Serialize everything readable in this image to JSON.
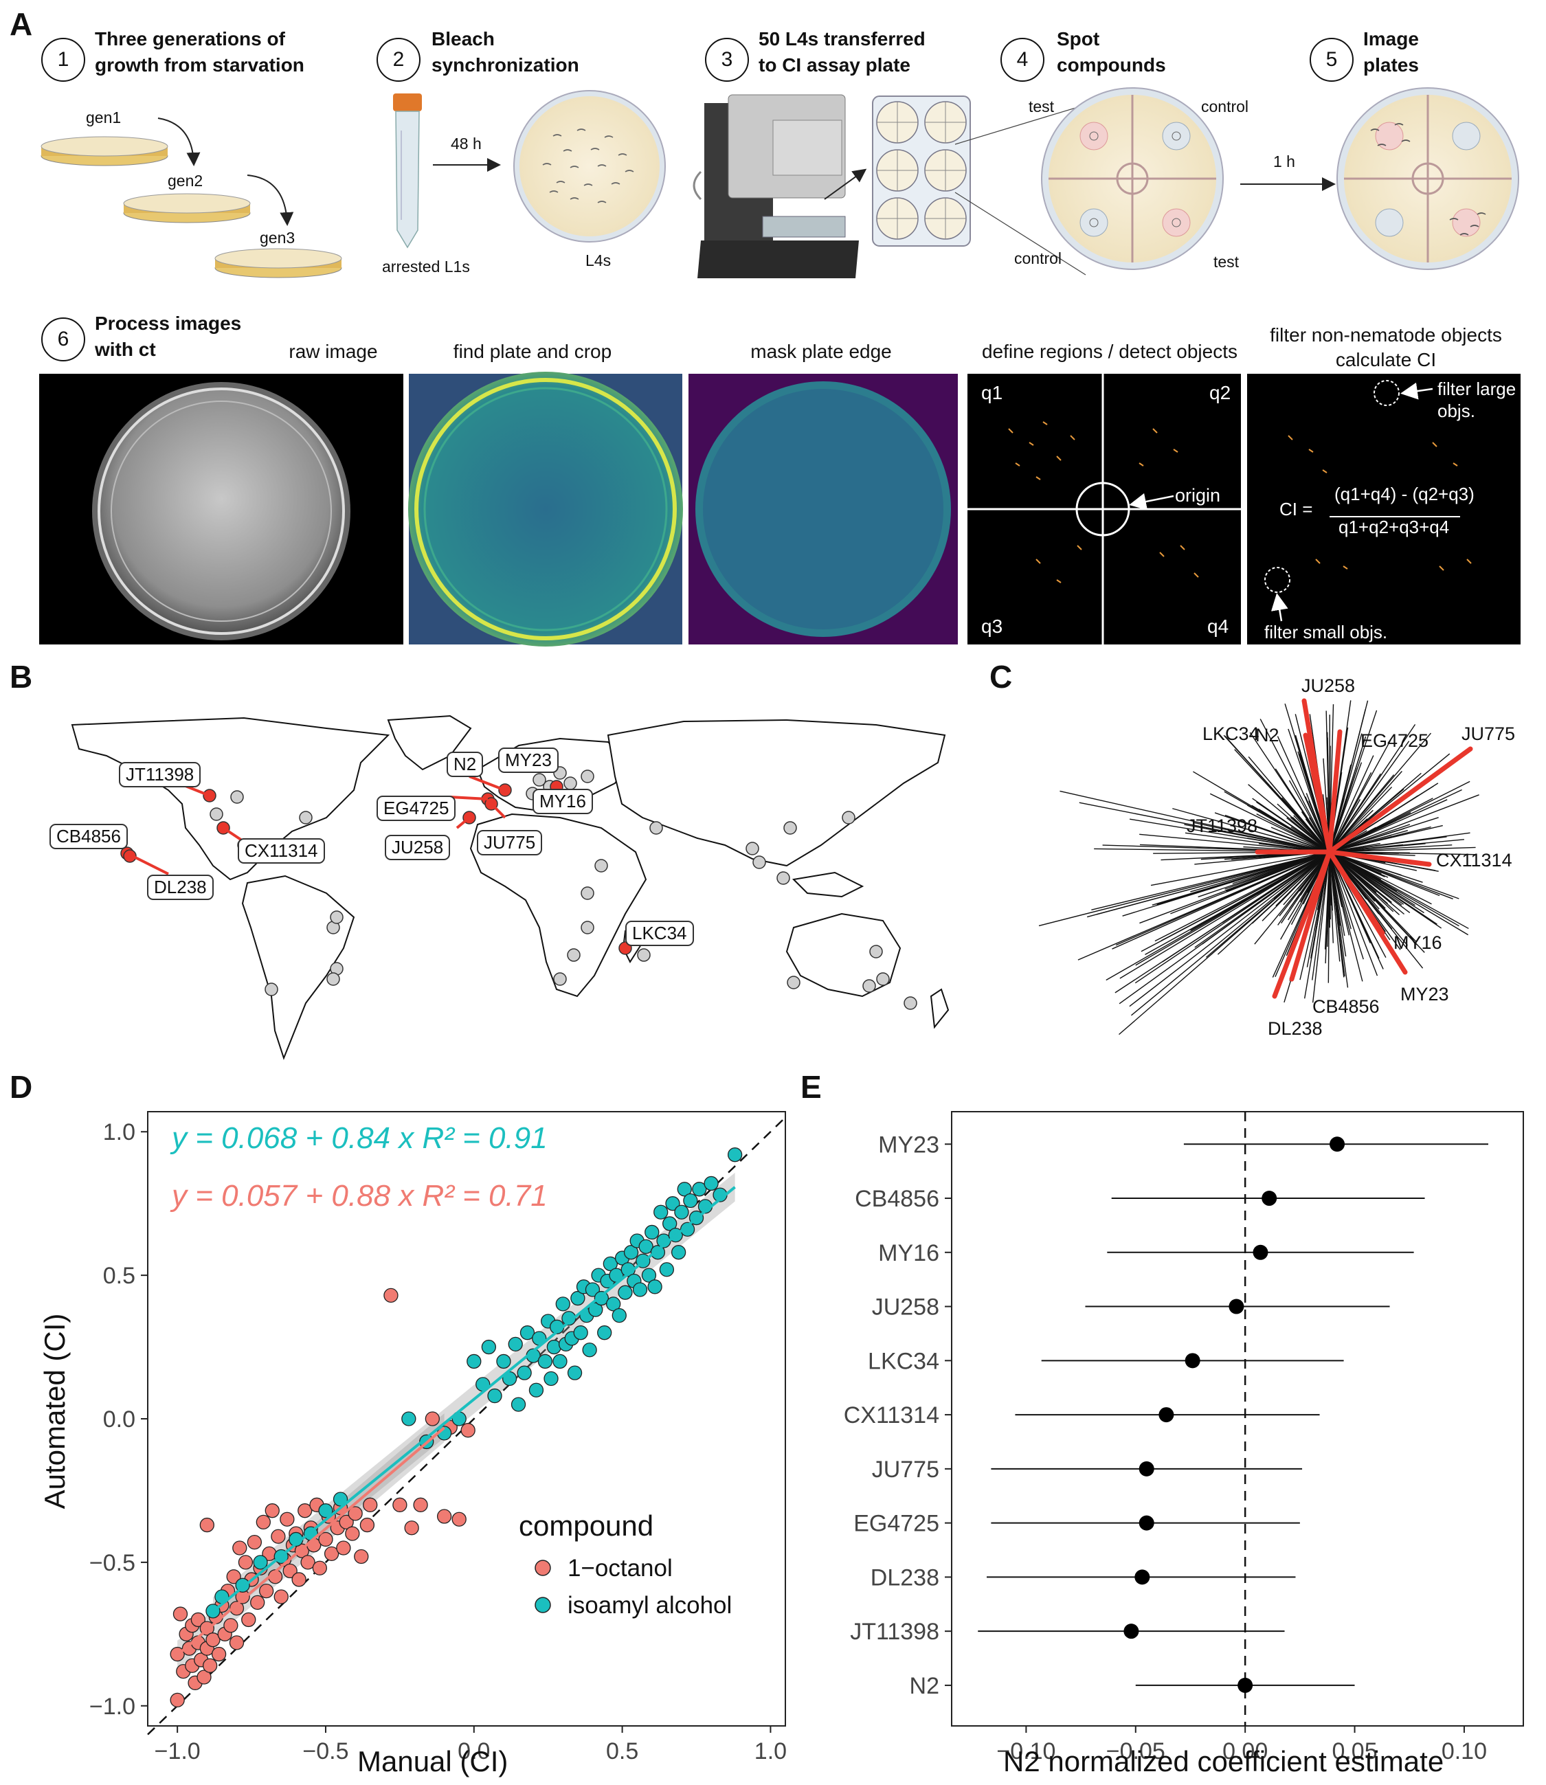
{
  "panels": {
    "a": "A",
    "b": "B",
    "c": "C",
    "d": "D",
    "e": "E"
  },
  "steps": [
    {
      "num": "1",
      "title": "Three generations of\ngrowth from starvation"
    },
    {
      "num": "2",
      "title": "Bleach\nsynchronization"
    },
    {
      "num": "3",
      "title": "50 L4s transferred\nto CI assay plate"
    },
    {
      "num": "4",
      "title": "Spot\ncompounds"
    },
    {
      "num": "5",
      "title": "Image\nplates"
    },
    {
      "num": "6",
      "title": "Process images\nwith ct"
    }
  ],
  "step1": {
    "gen1": "gen1",
    "gen2": "gen2",
    "gen3": "gen3"
  },
  "step2": {
    "arrested": "arrested L1s",
    "time": "48 h",
    "l4": "L4s"
  },
  "step4": {
    "test1": "test",
    "control1": "control",
    "control2": "control",
    "test2": "test",
    "time": "1 h"
  },
  "images": [
    {
      "title": "raw image"
    },
    {
      "title": "find plate and crop"
    },
    {
      "title": "mask plate edge"
    },
    {
      "title": "define regions / detect objects"
    },
    {
      "title": "filter non-nematode objects\ncalculate CI"
    }
  ],
  "regions": {
    "q1": "q1",
    "q2": "q2",
    "q3": "q3",
    "q4": "q4",
    "origin": "origin"
  },
  "filter": {
    "large": "filter large\nobjs.",
    "small": "filter small objs.",
    "ci_lhs": "CI =",
    "ci_num": "(q1+q4) - (q2+q3)",
    "ci_den": "q1+q2+q3+q4"
  },
  "map_labels": [
    "JT11398",
    "CB4856",
    "DL238",
    "CX11314",
    "N2",
    "MY23",
    "MY16",
    "EG4725",
    "JU258",
    "JU775",
    "LKC34"
  ],
  "tree_labels": [
    "N2",
    "JU258",
    "LKC34",
    "EG4725",
    "JU775",
    "JT11398",
    "CX11314",
    "MY16",
    "MY23",
    "CB4856",
    "DL238"
  ],
  "colors": {
    "octanol": "#F07B72",
    "isoamyl": "#1BBFBF",
    "highlight": "#E8372C",
    "grey_point": "#d0d0d0"
  },
  "chart_data": [
    {
      "type": "scatter",
      "xlabel": "Manual (CI)",
      "ylabel": "Automated (CI)",
      "xlim": [
        -1.1,
        1.05
      ],
      "ylim": [
        -1.07,
        1.07
      ],
      "xticks": [
        "−1.0",
        "−0.5",
        "0.0",
        "0.5",
        "1.0"
      ],
      "yticks": [
        "−1.0",
        "−0.5",
        "0.0",
        "0.5",
        "1.0"
      ],
      "legend_title": "compound",
      "legend_placement": "bottom-right",
      "equations": [
        {
          "text": "y = 0.068 + 0.84 x  R² = 0.91",
          "color": "#1BBFBF"
        },
        {
          "text": "y = 0.057 + 0.88 x  R² = 0.71",
          "color": "#F07B72"
        }
      ],
      "series": [
        {
          "name": "1−octanol",
          "intercept": 0.057,
          "slope": 0.88,
          "fit_range": [
            -1.0,
            -0.1
          ],
          "points": [
            [
              -1.0,
              -0.98
            ],
            [
              -1.0,
              -0.82
            ],
            [
              -0.99,
              -0.68
            ],
            [
              -0.98,
              -0.88
            ],
            [
              -0.97,
              -0.75
            ],
            [
              -0.96,
              -0.8
            ],
            [
              -0.95,
              -0.86
            ],
            [
              -0.95,
              -0.72
            ],
            [
              -0.94,
              -0.92
            ],
            [
              -0.93,
              -0.78
            ],
            [
              -0.93,
              -0.7
            ],
            [
              -0.92,
              -0.84
            ],
            [
              -0.91,
              -0.9
            ],
            [
              -0.9,
              -0.8
            ],
            [
              -0.9,
              -0.73
            ],
            [
              -0.9,
              -0.37
            ],
            [
              -0.89,
              -0.86
            ],
            [
              -0.88,
              -0.77
            ],
            [
              -0.87,
              -0.69
            ],
            [
              -0.86,
              -0.82
            ],
            [
              -0.85,
              -0.65
            ],
            [
              -0.84,
              -0.75
            ],
            [
              -0.83,
              -0.6
            ],
            [
              -0.82,
              -0.72
            ],
            [
              -0.81,
              -0.55
            ],
            [
              -0.8,
              -0.78
            ],
            [
              -0.8,
              -0.66
            ],
            [
              -0.79,
              -0.45
            ],
            [
              -0.78,
              -0.62
            ],
            [
              -0.77,
              -0.5
            ],
            [
              -0.76,
              -0.7
            ],
            [
              -0.75,
              -0.56
            ],
            [
              -0.74,
              -0.43
            ],
            [
              -0.73,
              -0.64
            ],
            [
              -0.72,
              -0.52
            ],
            [
              -0.71,
              -0.36
            ],
            [
              -0.7,
              -0.6
            ],
            [
              -0.69,
              -0.47
            ],
            [
              -0.68,
              -0.32
            ],
            [
              -0.67,
              -0.55
            ],
            [
              -0.66,
              -0.41
            ],
            [
              -0.65,
              -0.62
            ],
            [
              -0.64,
              -0.49
            ],
            [
              -0.63,
              -0.35
            ],
            [
              -0.62,
              -0.53
            ],
            [
              -0.61,
              -0.44
            ],
            [
              -0.6,
              -0.4
            ],
            [
              -0.59,
              -0.56
            ],
            [
              -0.58,
              -0.46
            ],
            [
              -0.57,
              -0.32
            ],
            [
              -0.56,
              -0.5
            ],
            [
              -0.55,
              -0.38
            ],
            [
              -0.54,
              -0.44
            ],
            [
              -0.53,
              -0.3
            ],
            [
              -0.52,
              -0.52
            ],
            [
              -0.5,
              -0.42
            ],
            [
              -0.49,
              -0.34
            ],
            [
              -0.48,
              -0.47
            ],
            [
              -0.46,
              -0.38
            ],
            [
              -0.45,
              -0.31
            ],
            [
              -0.44,
              -0.45
            ],
            [
              -0.43,
              -0.36
            ],
            [
              -0.41,
              -0.4
            ],
            [
              -0.4,
              -0.33
            ],
            [
              -0.38,
              -0.48
            ],
            [
              -0.36,
              -0.37
            ],
            [
              -0.35,
              -0.3
            ],
            [
              -0.28,
              0.43
            ],
            [
              -0.25,
              -0.3
            ],
            [
              -0.21,
              -0.38
            ],
            [
              -0.18,
              -0.3
            ],
            [
              -0.14,
              0.0
            ],
            [
              -0.1,
              -0.34
            ],
            [
              -0.08,
              -0.03
            ],
            [
              -0.05,
              -0.35
            ],
            [
              -0.02,
              -0.04
            ]
          ]
        },
        {
          "name": "isoamyl alcohol",
          "intercept": 0.068,
          "slope": 0.84,
          "fit_range": [
            -0.88,
            0.88
          ],
          "points": [
            [
              -0.88,
              -0.67
            ],
            [
              -0.85,
              -0.62
            ],
            [
              -0.78,
              -0.58
            ],
            [
              -0.72,
              -0.5
            ],
            [
              -0.65,
              -0.48
            ],
            [
              -0.6,
              -0.42
            ],
            [
              -0.55,
              -0.4
            ],
            [
              -0.5,
              -0.32
            ],
            [
              -0.45,
              -0.28
            ],
            [
              -0.22,
              0.0
            ],
            [
              -0.16,
              -0.08
            ],
            [
              -0.1,
              -0.05
            ],
            [
              -0.05,
              0.0
            ],
            [
              0.0,
              0.2
            ],
            [
              0.03,
              0.12
            ],
            [
              0.05,
              0.25
            ],
            [
              0.07,
              0.08
            ],
            [
              0.1,
              0.2
            ],
            [
              0.12,
              0.14
            ],
            [
              0.14,
              0.26
            ],
            [
              0.15,
              0.05
            ],
            [
              0.17,
              0.16
            ],
            [
              0.18,
              0.3
            ],
            [
              0.2,
              0.22
            ],
            [
              0.21,
              0.1
            ],
            [
              0.22,
              0.28
            ],
            [
              0.24,
              0.2
            ],
            [
              0.25,
              0.34
            ],
            [
              0.26,
              0.14
            ],
            [
              0.27,
              0.25
            ],
            [
              0.28,
              0.32
            ],
            [
              0.29,
              0.2
            ],
            [
              0.3,
              0.4
            ],
            [
              0.31,
              0.26
            ],
            [
              0.32,
              0.35
            ],
            [
              0.33,
              0.28
            ],
            [
              0.34,
              0.16
            ],
            [
              0.35,
              0.42
            ],
            [
              0.36,
              0.3
            ],
            [
              0.37,
              0.46
            ],
            [
              0.38,
              0.36
            ],
            [
              0.39,
              0.24
            ],
            [
              0.4,
              0.45
            ],
            [
              0.41,
              0.38
            ],
            [
              0.42,
              0.5
            ],
            [
              0.43,
              0.42
            ],
            [
              0.44,
              0.3
            ],
            [
              0.45,
              0.48
            ],
            [
              0.46,
              0.54
            ],
            [
              0.47,
              0.4
            ],
            [
              0.48,
              0.5
            ],
            [
              0.49,
              0.36
            ],
            [
              0.5,
              0.56
            ],
            [
              0.51,
              0.44
            ],
            [
              0.52,
              0.52
            ],
            [
              0.53,
              0.58
            ],
            [
              0.54,
              0.48
            ],
            [
              0.55,
              0.62
            ],
            [
              0.56,
              0.45
            ],
            [
              0.57,
              0.55
            ],
            [
              0.58,
              0.6
            ],
            [
              0.59,
              0.5
            ],
            [
              0.6,
              0.65
            ],
            [
              0.61,
              0.46
            ],
            [
              0.62,
              0.58
            ],
            [
              0.63,
              0.72
            ],
            [
              0.64,
              0.62
            ],
            [
              0.65,
              0.52
            ],
            [
              0.66,
              0.68
            ],
            [
              0.67,
              0.75
            ],
            [
              0.68,
              0.64
            ],
            [
              0.69,
              0.58
            ],
            [
              0.7,
              0.72
            ],
            [
              0.71,
              0.8
            ],
            [
              0.72,
              0.66
            ],
            [
              0.73,
              0.76
            ],
            [
              0.75,
              0.7
            ],
            [
              0.76,
              0.8
            ],
            [
              0.78,
              0.74
            ],
            [
              0.8,
              0.82
            ],
            [
              0.83,
              0.78
            ],
            [
              0.88,
              0.92
            ]
          ]
        }
      ]
    },
    {
      "type": "forest",
      "xlabel": "N2 normalized coefficient estimate",
      "xlim": [
        -0.134,
        0.127
      ],
      "xticks": [
        "−0.10",
        "−0.05",
        "0.00",
        "0.05",
        "0.10"
      ],
      "categories": [
        "MY23",
        "CB4856",
        "MY16",
        "JU258",
        "LKC34",
        "CX11314",
        "JU775",
        "EG4725",
        "DL238",
        "JT11398",
        "N2"
      ],
      "estimates": [
        0.042,
        0.011,
        0.007,
        -0.004,
        -0.024,
        -0.036,
        -0.045,
        -0.045,
        -0.047,
        -0.052,
        0.0
      ],
      "lower": [
        -0.028,
        -0.061,
        -0.063,
        -0.073,
        -0.093,
        -0.105,
        -0.116,
        -0.116,
        -0.118,
        -0.122,
        -0.05
      ],
      "upper": [
        0.111,
        0.082,
        0.077,
        0.066,
        0.045,
        0.034,
        0.026,
        0.025,
        0.023,
        0.018,
        0.05
      ]
    }
  ]
}
